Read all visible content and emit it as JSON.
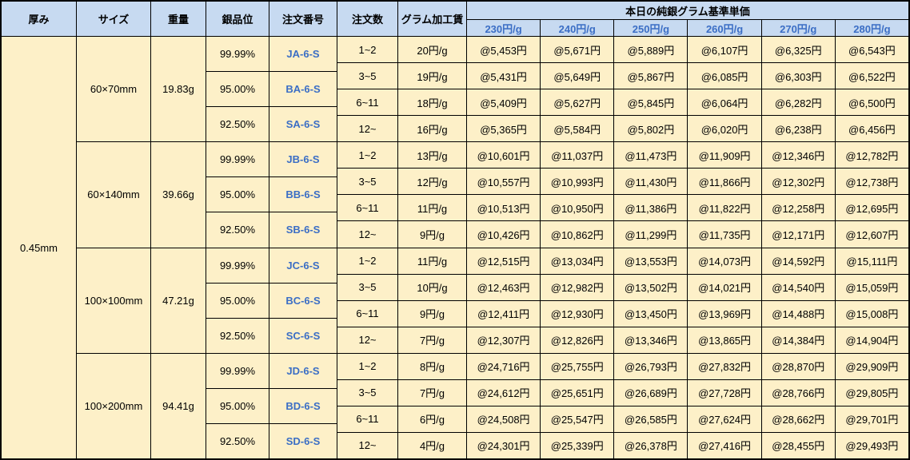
{
  "chart_data": {
    "type": "table",
    "header": {
      "thickness": "厚み",
      "size": "サイズ",
      "weight": "重量",
      "purity": "銀品位",
      "order_no": "注文番号",
      "qty": "注文数",
      "fee": "グラム加工賃",
      "price_group_title": "本日の純銀グラム基準単価",
      "price_columns": [
        "230円/g",
        "240円/g",
        "250円/g",
        "260円/g",
        "270円/g",
        "280円/g"
      ]
    },
    "thickness": "0.45mm",
    "groups": [
      {
        "size": "60×70mm",
        "weight": "19.83g",
        "purities": [
          {
            "purity": "99.99%",
            "code": "JA-6-S"
          },
          {
            "purity": "95.00%",
            "code": "BA-6-S"
          },
          {
            "purity": "92.50%",
            "code": "SA-6-S"
          }
        ],
        "rows": [
          {
            "qty": "1~2",
            "fee": "20円/g",
            "prices": [
              "@5,453円",
              "@5,671円",
              "@5,889円",
              "@6,107円",
              "@6,325円",
              "@6,543円"
            ]
          },
          {
            "qty": "3~5",
            "fee": "19円/g",
            "prices": [
              "@5,431円",
              "@5,649円",
              "@5,867円",
              "@6,085円",
              "@6,303円",
              "@6,522円"
            ]
          },
          {
            "qty": "6~11",
            "fee": "18円/g",
            "prices": [
              "@5,409円",
              "@5,627円",
              "@5,845円",
              "@6,064円",
              "@6,282円",
              "@6,500円"
            ]
          },
          {
            "qty": "12~",
            "fee": "16円/g",
            "prices": [
              "@5,365円",
              "@5,584円",
              "@5,802円",
              "@6,020円",
              "@6,238円",
              "@6,456円"
            ]
          }
        ]
      },
      {
        "size": "60×140mm",
        "weight": "39.66g",
        "purities": [
          {
            "purity": "99.99%",
            "code": "JB-6-S"
          },
          {
            "purity": "95.00%",
            "code": "BB-6-S"
          },
          {
            "purity": "92.50%",
            "code": "SB-6-S"
          }
        ],
        "rows": [
          {
            "qty": "1~2",
            "fee": "13円/g",
            "prices": [
              "@10,601円",
              "@11,037円",
              "@11,473円",
              "@11,909円",
              "@12,346円",
              "@12,782円"
            ]
          },
          {
            "qty": "3~5",
            "fee": "12円/g",
            "prices": [
              "@10,557円",
              "@10,993円",
              "@11,430円",
              "@11,866円",
              "@12,302円",
              "@12,738円"
            ]
          },
          {
            "qty": "6~11",
            "fee": "11円/g",
            "prices": [
              "@10,513円",
              "@10,950円",
              "@11,386円",
              "@11,822円",
              "@12,258円",
              "@12,695円"
            ]
          },
          {
            "qty": "12~",
            "fee": "9円/g",
            "prices": [
              "@10,426円",
              "@10,862円",
              "@11,299円",
              "@11,735円",
              "@12,171円",
              "@12,607円"
            ]
          }
        ]
      },
      {
        "size": "100×100mm",
        "weight": "47.21g",
        "purities": [
          {
            "purity": "99.99%",
            "code": "JC-6-S"
          },
          {
            "purity": "95.00%",
            "code": "BC-6-S"
          },
          {
            "purity": "92.50%",
            "code": "SC-6-S"
          }
        ],
        "rows": [
          {
            "qty": "1~2",
            "fee": "11円/g",
            "prices": [
              "@12,515円",
              "@13,034円",
              "@13,553円",
              "@14,073円",
              "@14,592円",
              "@15,111円"
            ]
          },
          {
            "qty": "3~5",
            "fee": "10円/g",
            "prices": [
              "@12,463円",
              "@12,982円",
              "@13,502円",
              "@14,021円",
              "@14,540円",
              "@15,059円"
            ]
          },
          {
            "qty": "6~11",
            "fee": "9円/g",
            "prices": [
              "@12,411円",
              "@12,930円",
              "@13,450円",
              "@13,969円",
              "@14,488円",
              "@15,008円"
            ]
          },
          {
            "qty": "12~",
            "fee": "7円/g",
            "prices": [
              "@12,307円",
              "@12,826円",
              "@13,346円",
              "@13,865円",
              "@14,384円",
              "@14,904円"
            ]
          }
        ]
      },
      {
        "size": "100×200mm",
        "weight": "94.41g",
        "purities": [
          {
            "purity": "99.99%",
            "code": "JD-6-S"
          },
          {
            "purity": "95.00%",
            "code": "BD-6-S"
          },
          {
            "purity": "92.50%",
            "code": "SD-6-S"
          }
        ],
        "rows": [
          {
            "qty": "1~2",
            "fee": "8円/g",
            "prices": [
              "@24,716円",
              "@25,755円",
              "@26,793円",
              "@27,832円",
              "@28,870円",
              "@29,909円"
            ]
          },
          {
            "qty": "3~5",
            "fee": "7円/g",
            "prices": [
              "@24,612円",
              "@25,651円",
              "@26,689円",
              "@27,728円",
              "@28,766円",
              "@29,805円"
            ]
          },
          {
            "qty": "6~11",
            "fee": "6円/g",
            "prices": [
              "@24,508円",
              "@25,547円",
              "@26,585円",
              "@27,624円",
              "@28,662円",
              "@29,701円"
            ]
          },
          {
            "qty": "12~",
            "fee": "4円/g",
            "prices": [
              "@24,301円",
              "@25,339円",
              "@26,378円",
              "@27,416円",
              "@28,455円",
              "@29,493円"
            ]
          }
        ]
      }
    ]
  },
  "colors": {
    "header_bg": "#C7DAF1",
    "cell_bg": "#FDF0C8",
    "accent_blue": "#3B6EC5",
    "grid_line": "#000000"
  }
}
